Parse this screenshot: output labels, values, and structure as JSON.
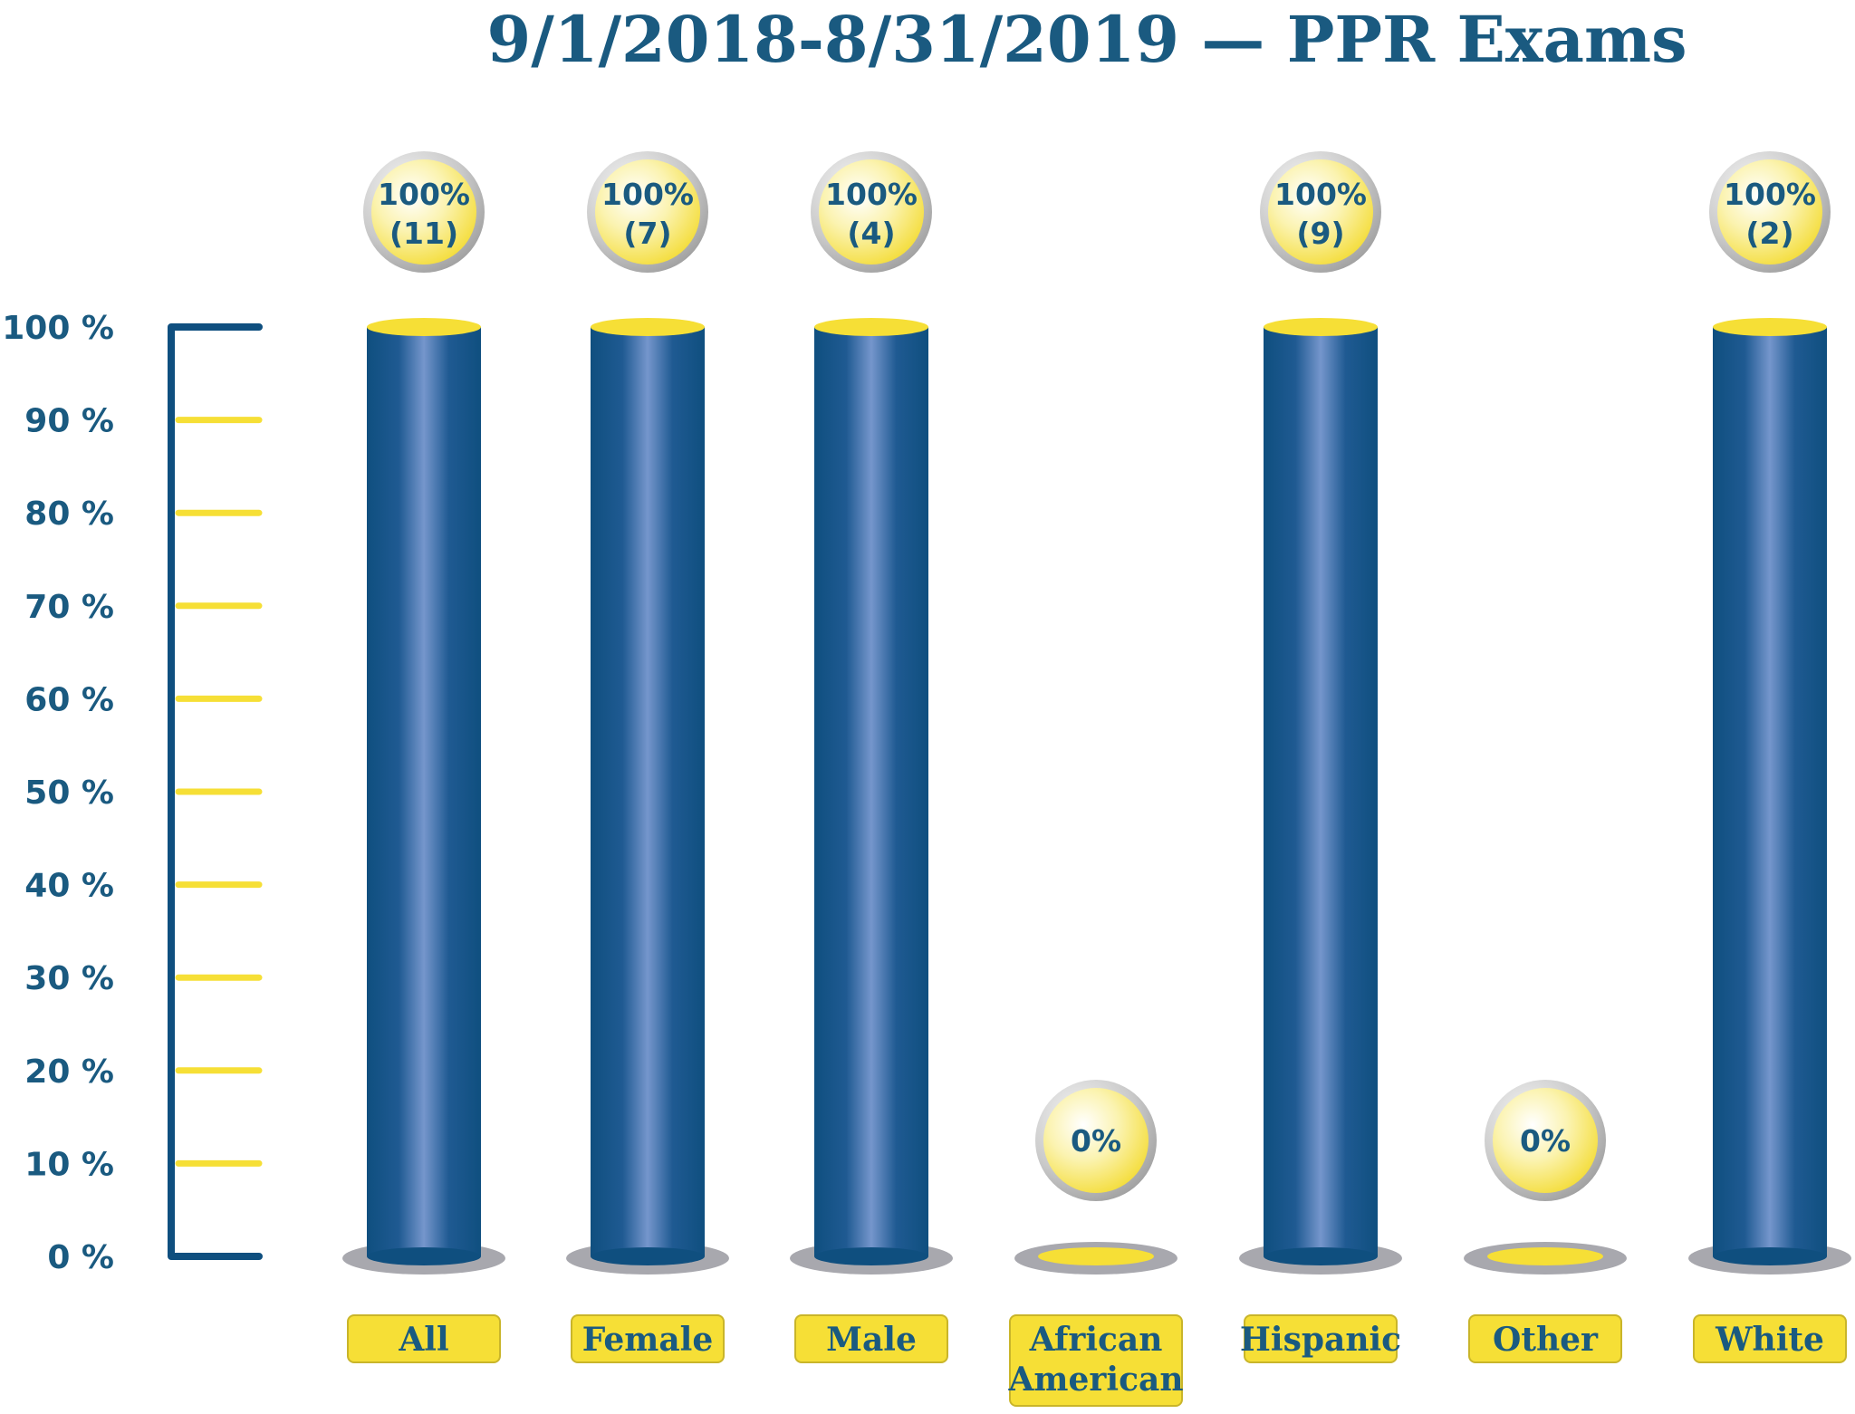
{
  "chart_data": {
    "type": "bar",
    "title": "9/1/2018-8/31/2019 — PPR Exams",
    "categories": [
      "All",
      "Female",
      "Male",
      "African American",
      "Hispanic",
      "Other",
      "White"
    ],
    "category_lines": [
      [
        "All"
      ],
      [
        "Female"
      ],
      [
        "Male"
      ],
      [
        "African",
        "American"
      ],
      [
        "Hispanic"
      ],
      [
        "Other"
      ],
      [
        "White"
      ]
    ],
    "values": [
      100,
      100,
      100,
      0,
      100,
      0,
      100
    ],
    "bubble_labels": [
      [
        "100%",
        "(11)"
      ],
      [
        "100%",
        "(7)"
      ],
      [
        "100%",
        "(4)"
      ],
      [
        "0%"
      ],
      [
        "100%",
        "(9)"
      ],
      [
        "0%"
      ],
      [
        "100%",
        "(2)"
      ]
    ],
    "yticks": [
      "0 %",
      "10 %",
      "20 %",
      "30 %",
      "40 %",
      "50 %",
      "60 %",
      "70 %",
      "80 %",
      "90 %",
      "100 %"
    ],
    "ylim": [
      0,
      100
    ],
    "xlabel": "",
    "ylabel": "",
    "colors": {
      "bar": "#0f4f7f",
      "bar_highlight": "#6f93c9",
      "accent": "#f6df36",
      "text": "#1a5a80",
      "axis": "#0f4f7f",
      "base_shadow": "#a8a8ae"
    }
  }
}
